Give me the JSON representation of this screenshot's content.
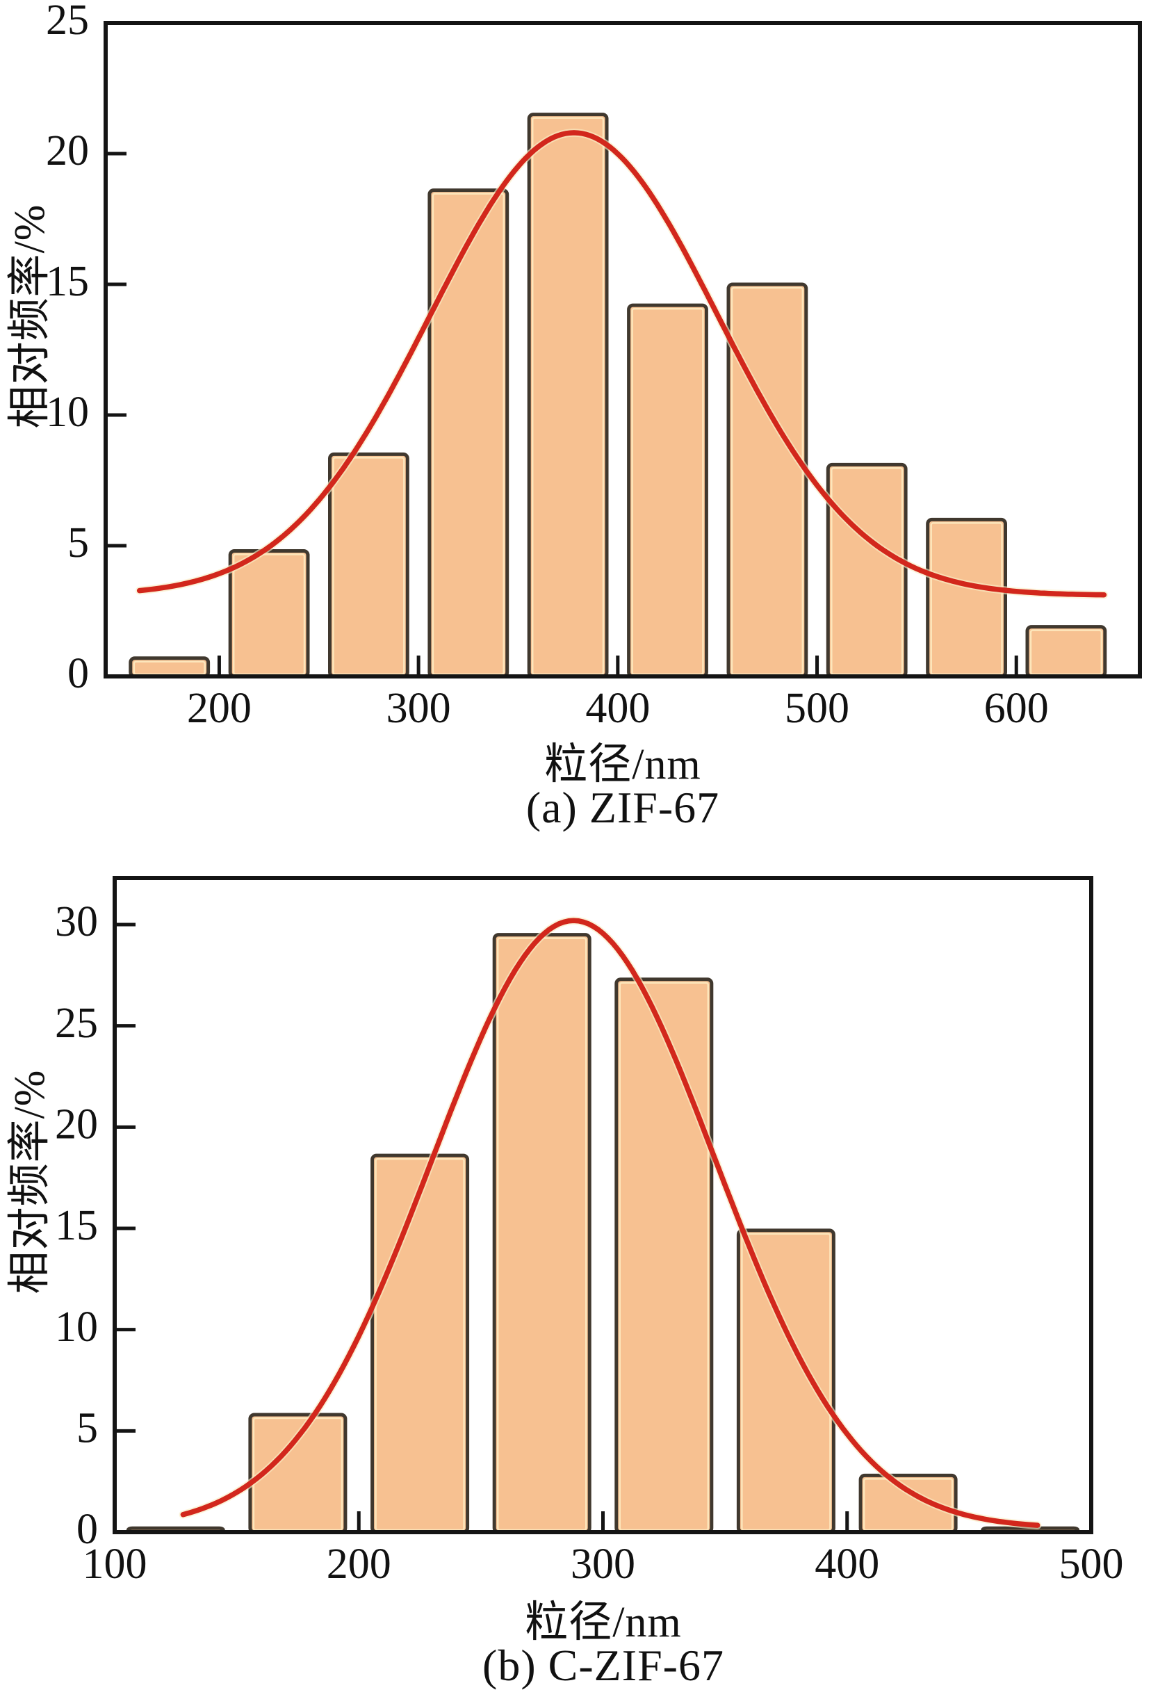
{
  "figure": {
    "background": "#ffffff",
    "description_visible_panels": 2
  },
  "colors": {
    "bar_fill": "#f7c191",
    "bar_edge": "#40382e",
    "bar_inner_highlight": "#fdeac0",
    "fit_curve": "#d2271c",
    "fit_curve_halo": "#f9edc4",
    "axis": "#141414",
    "text": "#111111"
  },
  "chart_data": [
    {
      "type": "bar",
      "panel": "a",
      "title": "(a) ZIF-67",
      "xlabel": "粒径/nm",
      "ylabel": "相对频率/%",
      "legend": "none",
      "grid": false,
      "bin_width_nm": 50,
      "categories": [
        175,
        225,
        275,
        325,
        375,
        425,
        475,
        525,
        575,
        625
      ],
      "values": [
        0.7,
        4.8,
        8.5,
        18.6,
        21.5,
        14.2,
        15.0,
        8.1,
        6.0,
        1.9
      ],
      "xlim": [
        143,
        662
      ],
      "ylim": [
        0,
        25
      ],
      "xticks": [
        200,
        300,
        400,
        500,
        600
      ],
      "yticks": [
        0,
        5,
        10,
        15,
        20,
        25
      ],
      "fit_curve": {
        "type": "gaussian",
        "y0": 3.1,
        "amplitude": 17.7,
        "center": 378,
        "sigma": 72,
        "x_start": 160,
        "x_end": 645,
        "peak_value": 20.8
      }
    },
    {
      "type": "bar",
      "panel": "b",
      "title": "(b) C-ZIF-67",
      "xlabel": "粒径/nm",
      "ylabel": "相对频率/%",
      "legend": "none",
      "grid": false,
      "bin_width_nm": 50,
      "categories": [
        125,
        175,
        225,
        275,
        325,
        375,
        425,
        475
      ],
      "values": [
        0.2,
        5.8,
        18.6,
        29.5,
        27.3,
        14.9,
        2.8,
        0.2
      ],
      "xlim": [
        100,
        500
      ],
      "ylim": [
        0,
        32.3
      ],
      "xticks": [
        100,
        200,
        300,
        400,
        500
      ],
      "yticks": [
        0,
        5,
        10,
        15,
        20,
        25,
        30
      ],
      "fit_curve": {
        "type": "gaussian",
        "y0": 0.2,
        "amplitude": 30.0,
        "center": 288,
        "sigma": 58,
        "x_start": 128,
        "x_end": 478,
        "peak_value": 30.2
      }
    }
  ]
}
